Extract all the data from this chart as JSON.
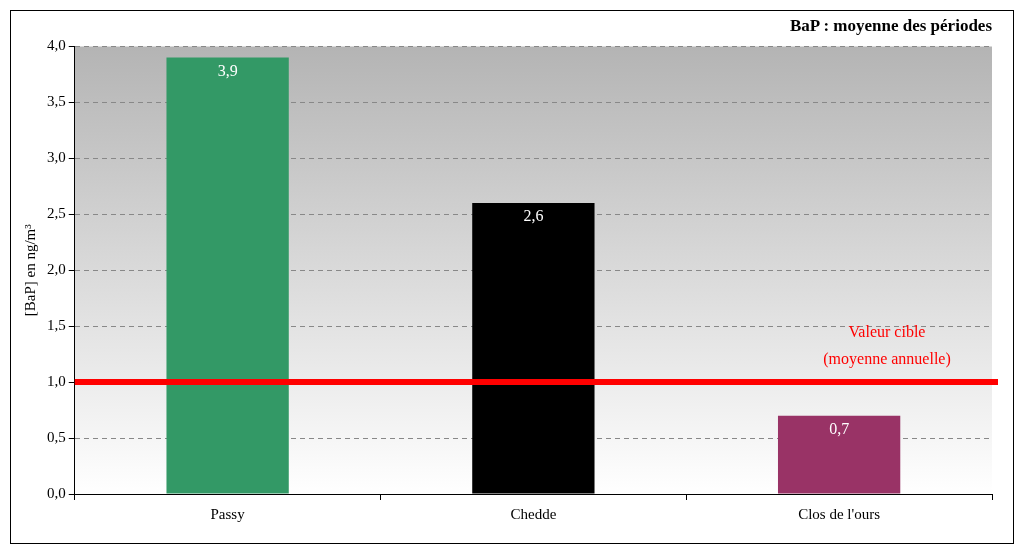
{
  "chart_data": {
    "type": "bar",
    "title": "BaP : moyenne des périodes",
    "ylabel": "[BaP] en ng/m³",
    "categories": [
      "Passy",
      "Chedde",
      "Clos de l'ours"
    ],
    "values": [
      3.9,
      2.6,
      0.7
    ],
    "colors": [
      "#339966",
      "#000000",
      "#993366"
    ],
    "ylim": [
      0,
      4
    ],
    "yticks": [
      {
        "value": 0,
        "label": "0,0"
      },
      {
        "value": 0.5,
        "label": "0,5"
      },
      {
        "value": 1,
        "label": "1,0"
      },
      {
        "value": 1.5,
        "label": "1,5"
      },
      {
        "value": 2,
        "label": "2,0"
      },
      {
        "value": 2.5,
        "label": "2,5"
      },
      {
        "value": 3,
        "label": "3,0"
      },
      {
        "value": 3.5,
        "label": "3,5"
      },
      {
        "value": 4,
        "label": "4,0"
      }
    ],
    "value_labels": [
      "3,9",
      "2,6",
      "0,7"
    ],
    "ref_lines": [
      {
        "axis": "y",
        "value": 1,
        "label": "Valeur cible\n(moyenne annuelle)",
        "color": "#ff0000"
      }
    ],
    "grid": "y",
    "legend": false
  }
}
